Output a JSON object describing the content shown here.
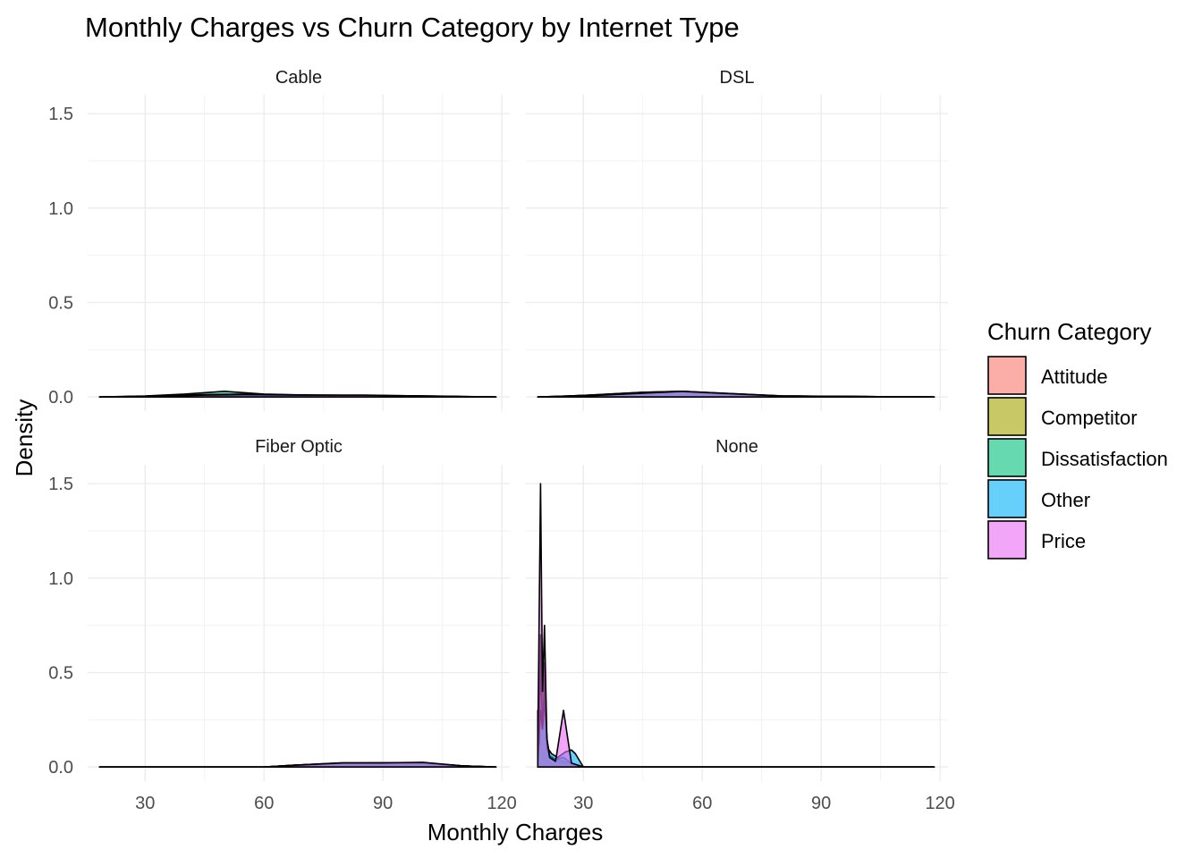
{
  "chart_data": {
    "type": "area",
    "title": "Monthly Charges vs Churn Category by Internet Type",
    "xlabel": "Monthly Charges",
    "ylabel": "Density",
    "xlim": [
      15.5,
      122
    ],
    "ylim": [
      -0.075,
      1.6
    ],
    "x_ticks": [
      "30",
      "60",
      "90",
      "120"
    ],
    "x_tick_values": [
      30,
      60,
      90,
      120
    ],
    "y_ticks": [
      "0.0",
      "0.5",
      "1.0",
      "1.5"
    ],
    "y_tick_values": [
      0,
      0.5,
      1.0,
      1.5
    ],
    "grid": true,
    "legend": {
      "title": "Churn Category",
      "placement": "right",
      "items": [
        {
          "label": "Attitude",
          "color": "#F8766D"
        },
        {
          "label": "Competitor",
          "color": "#A3A500"
        },
        {
          "label": "Dissatisfaction",
          "color": "#00BF7D"
        },
        {
          "label": "Other",
          "color": "#00B0F6"
        },
        {
          "label": "Price",
          "color": "#E76BF3"
        }
      ]
    },
    "facets": [
      {
        "label": "Cable",
        "series": [
          {
            "name": "Attitude",
            "x": [
              18.5,
              30,
              45,
              55,
              70,
              85,
              100,
              118.5
            ],
            "values": [
              0,
              0.004,
              0.012,
              0.012,
              0.01,
              0.008,
              0.006,
              0
            ]
          },
          {
            "name": "Competitor",
            "x": [
              18.5,
              30,
              45,
              55,
              70,
              85,
              100,
              118.5
            ],
            "values": [
              0,
              0.003,
              0.01,
              0.011,
              0.009,
              0.008,
              0.004,
              0
            ]
          },
          {
            "name": "Dissatisfaction",
            "x": [
              18.5,
              30,
              40,
              50,
              60,
              75,
              95,
              118.5
            ],
            "values": [
              0,
              0.005,
              0.015,
              0.03,
              0.015,
              0.008,
              0.004,
              0
            ]
          },
          {
            "name": "Other",
            "x": [
              18.5,
              30,
              45,
              55,
              70,
              85,
              100,
              118.5
            ],
            "values": [
              0,
              0.004,
              0.012,
              0.015,
              0.01,
              0.008,
              0.004,
              0
            ]
          },
          {
            "name": "Price",
            "x": [
              18.5,
              30,
              45,
              55,
              70,
              85,
              100,
              118.5
            ],
            "values": [
              0,
              0.003,
              0.01,
              0.012,
              0.01,
              0.01,
              0.005,
              0
            ]
          }
        ]
      },
      {
        "label": "DSL",
        "series": [
          {
            "name": "Attitude",
            "x": [
              18.5,
              30,
              45,
              55,
              65,
              80,
              100,
              118.5
            ],
            "values": [
              0,
              0.008,
              0.02,
              0.025,
              0.015,
              0.005,
              0.002,
              0
            ]
          },
          {
            "name": "Competitor",
            "x": [
              18.5,
              30,
              45,
              55,
              65,
              80,
              100,
              118.5
            ],
            "values": [
              0,
              0.008,
              0.025,
              0.03,
              0.015,
              0.004,
              0.002,
              0
            ]
          },
          {
            "name": "Dissatisfaction",
            "x": [
              18.5,
              30,
              45,
              55,
              65,
              80,
              100,
              118.5
            ],
            "values": [
              0,
              0.008,
              0.025,
              0.03,
              0.02,
              0.006,
              0.002,
              0
            ]
          },
          {
            "name": "Other",
            "x": [
              18.5,
              30,
              45,
              55,
              65,
              80,
              100,
              118.5
            ],
            "values": [
              0,
              0.006,
              0.02,
              0.028,
              0.018,
              0.005,
              0.002,
              0
            ]
          },
          {
            "name": "Price",
            "x": [
              18.5,
              30,
              45,
              55,
              65,
              80,
              100,
              118.5
            ],
            "values": [
              0,
              0.005,
              0.02,
              0.03,
              0.02,
              0.005,
              0.002,
              0
            ]
          }
        ]
      },
      {
        "label": "Fiber Optic",
        "series": [
          {
            "name": "Attitude",
            "x": [
              18.5,
              60,
              68,
              80,
              90,
              100,
              110,
              118.5
            ],
            "values": [
              0,
              0,
              0.01,
              0.02,
              0.02,
              0.02,
              0.005,
              0
            ]
          },
          {
            "name": "Competitor",
            "x": [
              18.5,
              60,
              68,
              80,
              90,
              100,
              110,
              118.5
            ],
            "values": [
              0,
              0,
              0.01,
              0.022,
              0.022,
              0.02,
              0.006,
              0
            ]
          },
          {
            "name": "Dissatisfaction",
            "x": [
              18.5,
              60,
              68,
              80,
              90,
              100,
              110,
              118.5
            ],
            "values": [
              0,
              0,
              0.01,
              0.02,
              0.022,
              0.022,
              0.006,
              0
            ]
          },
          {
            "name": "Other",
            "x": [
              18.5,
              60,
              68,
              80,
              90,
              100,
              110,
              118.5
            ],
            "values": [
              0,
              0,
              0.008,
              0.02,
              0.02,
              0.022,
              0.006,
              0
            ]
          },
          {
            "name": "Price",
            "x": [
              18.5,
              60,
              68,
              80,
              90,
              100,
              110,
              118.5
            ],
            "values": [
              0,
              0,
              0.01,
              0.022,
              0.022,
              0.025,
              0.006,
              0
            ]
          }
        ]
      },
      {
        "label": "None",
        "series": [
          {
            "name": "Attitude",
            "x": [
              18.5,
              19.2,
              19.7,
              20.2,
              20.8,
              21.5,
              23,
              25,
              27,
              30,
              118.5
            ],
            "values": [
              0.05,
              0.7,
              0.3,
              0.55,
              0.12,
              0.05,
              0.03,
              0.02,
              0.01,
              0,
              0
            ]
          },
          {
            "name": "Competitor",
            "x": [
              18.5,
              19.2,
              19.7,
              20.2,
              20.8,
              21.5,
              23,
              25,
              27,
              30,
              118.5
            ],
            "values": [
              0.1,
              0.6,
              0.4,
              0.5,
              0.15,
              0.06,
              0.04,
              0.03,
              0.02,
              0,
              0
            ]
          },
          {
            "name": "Dissatisfaction",
            "x": [
              18.5,
              18.9,
              19.2,
              19.7,
              20.2,
              20.8,
              21.5,
              23,
              25,
              27,
              30,
              118.5
            ],
            "values": [
              0.3,
              0.12,
              0.6,
              0.2,
              0.45,
              0.1,
              0.05,
              0.04,
              0.05,
              0.02,
              0,
              0
            ]
          },
          {
            "name": "Other",
            "x": [
              18.5,
              19.2,
              19.7,
              20.2,
              21,
              22,
              23.5,
              25.5,
              27,
              28,
              30,
              118.5
            ],
            "values": [
              0.02,
              0.3,
              0.2,
              0.35,
              0.1,
              0.07,
              0.05,
              0.08,
              0.09,
              0.07,
              0,
              0
            ]
          },
          {
            "name": "Price",
            "x": [
              18.5,
              19.2,
              19.7,
              20.2,
              20.8,
              21.5,
              23,
              25,
              27,
              30,
              118.5
            ],
            "values": [
              0.1,
              1.5,
              0.4,
              0.75,
              0.15,
              0.05,
              0.03,
              0.3,
              0.02,
              0,
              0
            ]
          }
        ]
      }
    ]
  }
}
